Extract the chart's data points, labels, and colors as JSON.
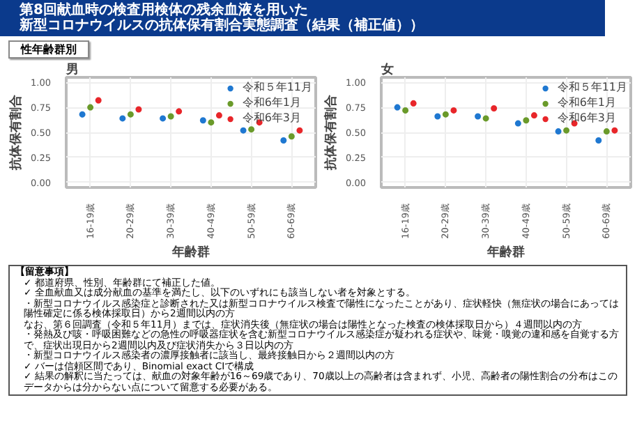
{
  "chart_data": [
    {
      "type": "other",
      "title": "第8回献血時の検査用検体の残余血液を用いた",
      "subtitle": "新型コロナウイルスの抗体保有割合実態調査（結果（補正値））",
      "annotations": [
        "性年齢群別"
      ]
    },
    {
      "type": "scatter",
      "title": "男",
      "xlabel": "年齢群",
      "ylabel": "抗体保有割合",
      "categories": [
        "16-19歳",
        "20-29歳",
        "30-39歳",
        "40-49歳",
        "50-59歳",
        "60-69歳"
      ],
      "ylim": [
        -0.05,
        1.05
      ],
      "yticks": [
        {
          "value": 0,
          "label": "0.00"
        },
        {
          "value": 0.25,
          "label": "0.25"
        },
        {
          "value": 0.5,
          "label": "0.50"
        },
        {
          "value": 0.75,
          "label": "0.75"
        },
        {
          "value": 1,
          "label": "1.00"
        }
      ],
      "grid": true,
      "legend": "top right",
      "marker": "circle",
      "series": [
        {
          "name": "令和５年11月",
          "color": "#1f78d1",
          "values": [
            0.68,
            0.64,
            0.64,
            0.62,
            0.52,
            0.42
          ],
          "errors": [
            0.03,
            0.015,
            0.015,
            0.015,
            0.02,
            0.015
          ]
        },
        {
          "name": "令和6年1月",
          "color": "#6a9a2a",
          "values": [
            0.75,
            0.68,
            0.66,
            0.6,
            0.53,
            0.46
          ],
          "errors": [
            0.03,
            0.015,
            0.015,
            0.015,
            0.02,
            0.015
          ]
        },
        {
          "name": "令和6年3月",
          "color": "#e8262a",
          "values": [
            0.82,
            0.73,
            0.71,
            0.67,
            0.6,
            0.52
          ],
          "errors": [
            0.03,
            0.015,
            0.015,
            0.015,
            0.02,
            0.02
          ]
        }
      ]
    },
    {
      "type": "scatter",
      "title": "女",
      "xlabel": "年齢群",
      "ylabel": "抗体保有割合",
      "categories": [
        "16-19歳",
        "20-29歳",
        "30-39歳",
        "40-49歳",
        "50-59歳",
        "60-69歳"
      ],
      "ylim": [
        -0.05,
        1.05
      ],
      "yticks": [
        {
          "value": 0,
          "label": "0.00"
        },
        {
          "value": 0.25,
          "label": "0.25"
        },
        {
          "value": 0.5,
          "label": "0.50"
        },
        {
          "value": 0.75,
          "label": "0.75"
        },
        {
          "value": 1,
          "label": "1.00"
        }
      ],
      "grid": true,
      "legend": "top right",
      "marker": "circle",
      "series": [
        {
          "name": "令和５年11月",
          "color": "#1f78d1",
          "values": [
            0.75,
            0.66,
            0.66,
            0.59,
            0.51,
            0.42
          ],
          "errors": [
            0.03,
            0.015,
            0.015,
            0.015,
            0.015,
            0.015
          ]
        },
        {
          "name": "令和6年1月",
          "color": "#6a9a2a",
          "values": [
            0.72,
            0.68,
            0.64,
            0.62,
            0.52,
            0.51
          ],
          "errors": [
            0.03,
            0.015,
            0.015,
            0.015,
            0.015,
            0.015
          ]
        },
        {
          "name": "令和6年3月",
          "color": "#e8262a",
          "values": [
            0.79,
            0.72,
            0.74,
            0.67,
            0.59,
            0.52
          ],
          "errors": [
            0.03,
            0.015,
            0.015,
            0.015,
            0.015,
            0.015
          ]
        }
      ]
    },
    {
      "type": "other",
      "title": "【留意事項】",
      "annotations": [
        "✓ 都道府県、性別、年齢群にて補正した値。",
        "✓ 全血献血又は成分献血の基準を満たし、以下のいずれにも該当しない者を対象とする。",
        "・新型コロナウイルス感染症と診断された又は新型コロナウイルス検査で陽性になったことがあり、症状軽快（無症状の場合にあっては陽性確定に係る検体採取日）から2週間以内の方",
        "なお、第６回調査（令和５年11月）までは、症状消失後（無症状の場合は陽性となった検査の検体採取日から）４週間以内の方",
        "・発熱及び咳・呼吸困難などの急性の呼吸器症状を含む新型コロナウイルス感染症が疑われる症状や、味覚・嗅覚の違和感を自覚する方で、症状出現日から2週間以内及び症状消失から３日以内の方",
        "・新型コロナウイルス感染者の濃厚接触者に該当し、最終接触日から２週間以内の方",
        "✓ バーは信頼区間であり、Binomial exact CIで構成",
        "✓ 結果の解釈に当たっては、献血の対象年齢が16～69歳であり、70歳以上の高齢者は含まれず、小児、高齢者の陽性割合の分布はこのデータからは分からない点について留意する必要がある。"
      ]
    }
  ]
}
